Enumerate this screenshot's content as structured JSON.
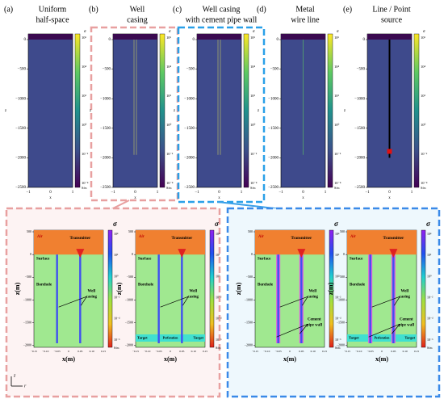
{
  "top_panels": [
    {
      "label": "(a)",
      "title": [
        "Uniform",
        "half-space"
      ]
    },
    {
      "label": "(b)",
      "title": [
        "Well",
        "casing"
      ]
    },
    {
      "label": "(c)",
      "title": [
        "Well casing",
        "with cement pipe wall"
      ]
    },
    {
      "label": "(d)",
      "title": [
        "Metal",
        "wire line"
      ]
    },
    {
      "label": "(e)",
      "title": [
        "Line / Point",
        "source"
      ]
    }
  ],
  "top_axes": {
    "yticks": [
      "0",
      "−500",
      "−1000",
      "−1500",
      "−2000",
      "−2500"
    ],
    "xticks": [
      "−1",
      "0",
      "1"
    ],
    "xlabel": "x",
    "ylabel": "z"
  },
  "top_colorbar": {
    "symbol": "σ",
    "unit": "S/m",
    "ticks": [
      "10⁶",
      "10⁴",
      "10²",
      "10⁰",
      "10⁻²",
      "10⁻⁴"
    ]
  },
  "bottom_axes": {
    "yticks": [
      "500",
      "0",
      "−500",
      "−1000",
      "−1500",
      "−2000"
    ],
    "xticks": [
      "−0.15",
      "−0.10",
      "−0.05",
      "0",
      "0.05",
      "0.10",
      "0.15"
    ],
    "xlabel": "x(m)",
    "ylabel": "z(m)"
  },
  "bottom_colorbar": {
    "symbol": "σ",
    "unit": "S/m",
    "ticks": [
      "10⁴",
      "10²",
      "10⁰",
      "10⁻²",
      "10⁻⁴",
      "10⁻⁶"
    ]
  },
  "bottom_labels": {
    "air": "Air",
    "transmitter": "Transmitter",
    "surface": "Surface",
    "borehole": "Borehole",
    "casing": [
      "Well",
      "casing"
    ],
    "cement": [
      "Cement",
      "pipe wall"
    ],
    "target": "Target",
    "perforation": "Perforation"
  },
  "coordinate": {
    "z": "z",
    "r": "r"
  }
}
